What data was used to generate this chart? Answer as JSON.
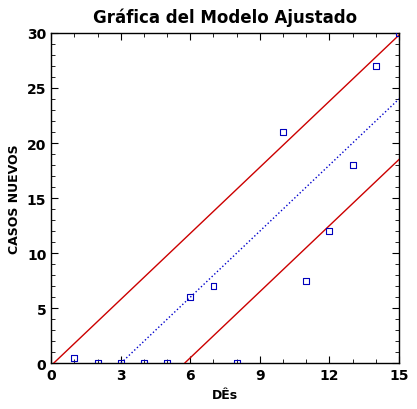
{
  "title": "Gráfica del Modelo Ajustado",
  "xlabel": "DÊs",
  "ylabel": "CASOS NUEVOS",
  "xlim": [
    0,
    15
  ],
  "ylim": [
    0,
    30
  ],
  "xticks": [
    0,
    3,
    6,
    9,
    12,
    15
  ],
  "yticks": [
    0,
    5,
    10,
    15,
    20,
    25,
    30
  ],
  "scatter_x": [
    1,
    2,
    3,
    4,
    5,
    6,
    7,
    8,
    10,
    11,
    12,
    13,
    14,
    15
  ],
  "scatter_y": [
    0.5,
    0,
    0,
    0,
    0,
    6,
    7,
    0,
    21,
    7.5,
    12,
    18,
    27,
    30
  ],
  "fit_slope": 2.0,
  "fit_intercept": -6.0,
  "upper_slope": 2.0,
  "upper_intercept": -0.2,
  "lower_slope": 2.0,
  "lower_intercept": -11.5,
  "line_color_fit": "#0000cc",
  "line_color_upper": "#cc0000",
  "line_color_lower": "#cc0000",
  "scatter_color": "#0000bb",
  "background_color": "#ffffff",
  "title_fontsize": 12,
  "axis_label_fontsize": 9,
  "tick_fontsize": 10
}
